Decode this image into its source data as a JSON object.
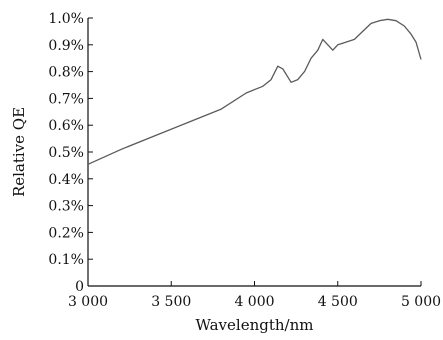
{
  "chart_data": {
    "type": "line",
    "title": "",
    "xlabel": "Wavelength/nm",
    "ylabel": "Relative QE",
    "xlim": [
      3000,
      5000
    ],
    "ylim": [
      0,
      1.0
    ],
    "grid": false,
    "colors": {
      "line": "#5b5b5b",
      "axis": "#111111"
    },
    "x_ticks": [
      {
        "value": 3000,
        "label": "3 000"
      },
      {
        "value": 3500,
        "label": "3 500"
      },
      {
        "value": 4000,
        "label": "4 000"
      },
      {
        "value": 4500,
        "label": "4 500"
      },
      {
        "value": 5000,
        "label": "5 000"
      }
    ],
    "y_ticks": [
      {
        "value": 0,
        "label": "0"
      },
      {
        "value": 0.1,
        "label": "0.1%"
      },
      {
        "value": 0.2,
        "label": "0.2%"
      },
      {
        "value": 0.3,
        "label": "0.3%"
      },
      {
        "value": 0.4,
        "label": "0.4%"
      },
      {
        "value": 0.5,
        "label": "0.5%"
      },
      {
        "value": 0.6,
        "label": "0.6%"
      },
      {
        "value": 0.7,
        "label": "0.7%"
      },
      {
        "value": 0.8,
        "label": "0.8%"
      },
      {
        "value": 0.9,
        "label": "0.9%"
      },
      {
        "value": 1.0,
        "label": "1.0%"
      }
    ],
    "series": [
      {
        "x": [
          3000,
          3200,
          3400,
          3600,
          3800,
          3950,
          4050,
          4100,
          4140,
          4170,
          4220,
          4260,
          4300,
          4340,
          4380,
          4410,
          4440,
          4470,
          4500,
          4550,
          4600,
          4650,
          4700,
          4750,
          4800,
          4850,
          4900,
          4940,
          4970,
          5000
        ],
        "y": [
          0.454,
          0.51,
          0.56,
          0.61,
          0.66,
          0.72,
          0.745,
          0.77,
          0.82,
          0.81,
          0.76,
          0.77,
          0.8,
          0.85,
          0.88,
          0.92,
          0.9,
          0.88,
          0.9,
          0.91,
          0.92,
          0.95,
          0.98,
          0.99,
          0.995,
          0.99,
          0.97,
          0.94,
          0.91,
          0.845
        ]
      }
    ]
  }
}
